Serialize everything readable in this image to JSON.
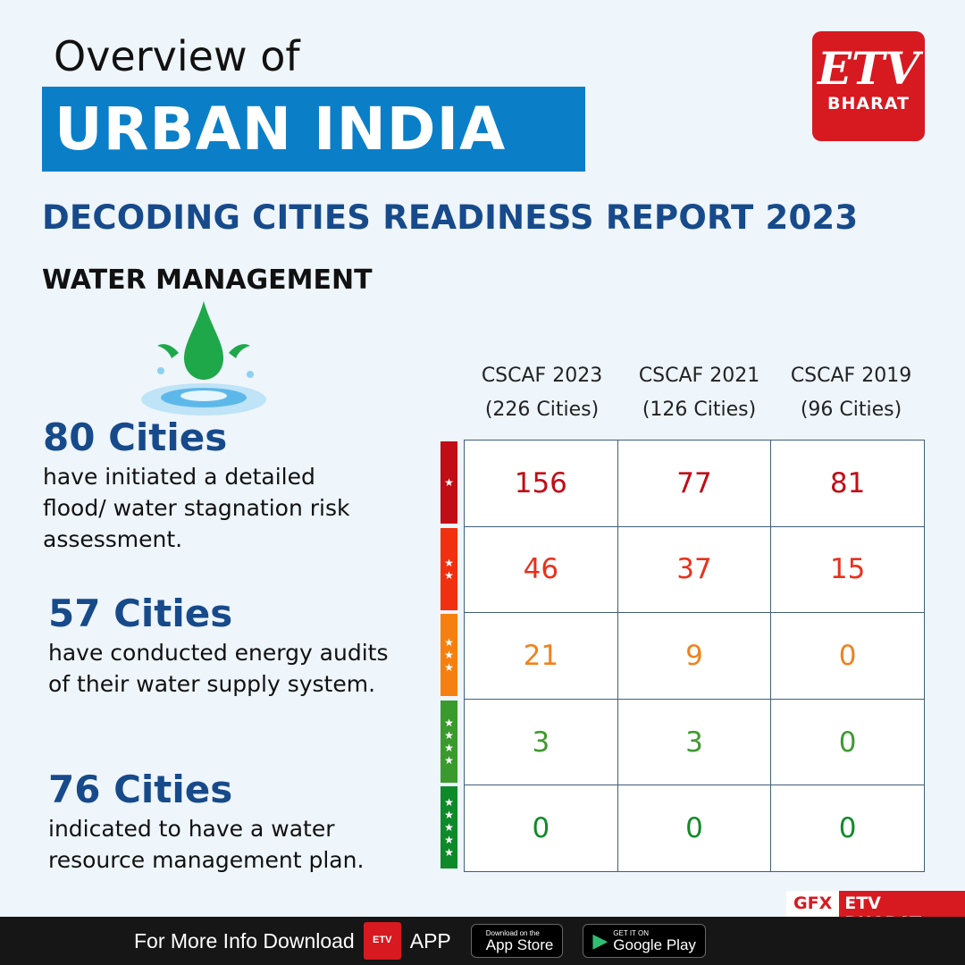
{
  "header": {
    "overview": "Overview of",
    "title": "URBAN INDIA",
    "subtitle": "DECODING CITIES READINESS REPORT 2023",
    "section": "WATER MANAGEMENT"
  },
  "logo": {
    "etv": "ETV",
    "bharat": "BHARAT"
  },
  "stats": [
    {
      "number": "80 Cities",
      "text": "have initiated a detailed flood/ water stagnation risk assessment."
    },
    {
      "number": "57 Cities",
      "text": "have conducted energy audits of their water supply system."
    },
    {
      "number": "76 Cities",
      "text": "indicated to have a water resource management plan."
    }
  ],
  "table": {
    "columns": [
      {
        "name": "CSCAF 2023",
        "cities": "(226 Cities)"
      },
      {
        "name": "CSCAF 2021",
        "cities": "(126 Cities)"
      },
      {
        "name": "CSCAF 2019",
        "cities": "(96 Cities)"
      }
    ],
    "rows": [
      {
        "stars": "★",
        "star_count": 1,
        "color": "#c00d16",
        "values": [
          "156",
          "77",
          "81"
        ]
      },
      {
        "stars": "★★",
        "star_count": 2,
        "color": "#e8321c",
        "values": [
          "46",
          "37",
          "15"
        ]
      },
      {
        "stars": "★★★",
        "star_count": 3,
        "color": "#f0821e",
        "values": [
          "21",
          "9",
          "0"
        ]
      },
      {
        "stars": "★★★★",
        "star_count": 4,
        "color": "#3d9a2e",
        "values": [
          "3",
          "3",
          "0"
        ]
      },
      {
        "stars": "★★★★★",
        "star_count": 5,
        "color": "#128a2a",
        "values": [
          "0",
          "0",
          "0"
        ]
      }
    ],
    "bar_colors": [
      "#c00d16",
      "#f0300f",
      "#f6800f",
      "#3a9a2d",
      "#0f8a2a"
    ]
  },
  "credit": {
    "gfx": "GFX",
    "brand": "ETV BHARAT"
  },
  "footer": {
    "text": "For More Info Download",
    "app": "APP",
    "app_logo": "ETV",
    "appstore_small": "Download on the",
    "appstore": "App Store",
    "play_small": "GET IT ON",
    "play": "Google Play"
  }
}
